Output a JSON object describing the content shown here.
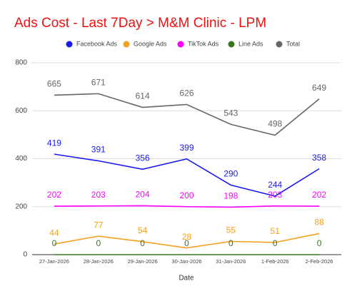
{
  "chart_data": {
    "type": "line",
    "title": "Ads Cost - Last 7Day > M&M Clinic - LPM",
    "x_label": "Date",
    "categories": [
      "27-Jan-2026",
      "28-Jan-2026",
      "29-Jan-2026",
      "30-Jan-2026",
      "31-Jan-2026",
      "1-Feb-2026",
      "2-Feb-2026"
    ],
    "series": [
      {
        "name": "Facebook Ads",
        "color": "#1a1aee",
        "values": [
          419,
          391,
          356,
          399,
          290,
          244,
          358
        ]
      },
      {
        "name": "Google Ads",
        "color": "#f4a020",
        "values": [
          44,
          77,
          54,
          28,
          55,
          51,
          88
        ]
      },
      {
        "name": "TikTok Ads",
        "color": "#ff00ff",
        "values": [
          202,
          203,
          204,
          200,
          198,
          203,
          202
        ]
      },
      {
        "name": "Line Ads",
        "color": "#38761d",
        "values": [
          0,
          0,
          0,
          0,
          0,
          0,
          0
        ]
      },
      {
        "name": "Total",
        "color": "#666666",
        "values": [
          665,
          671,
          614,
          626,
          543,
          498,
          649
        ]
      }
    ],
    "ylim": [
      0,
      800
    ],
    "yticks": [
      0,
      200,
      400,
      600,
      800
    ],
    "grid": true,
    "legend": "top",
    "title_color": "#ee1111"
  }
}
